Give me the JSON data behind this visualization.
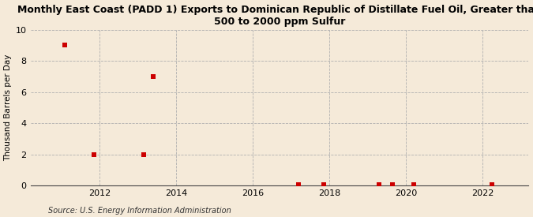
{
  "title": "Monthly East Coast (PADD 1) Exports to Dominican Republic of Distillate Fuel Oil, Greater than\n500 to 2000 ppm Sulfur",
  "ylabel": "Thousand Barrels per Day",
  "source": "Source: U.S. Energy Information Administration",
  "background_color": "#f5ead9",
  "plot_bg_color": "#f5ead9",
  "scatter_color": "#cc0000",
  "xlim": [
    2010.2,
    2023.2
  ],
  "ylim": [
    0,
    10
  ],
  "yticks": [
    0,
    2,
    4,
    6,
    8,
    10
  ],
  "xticks": [
    2012,
    2014,
    2016,
    2018,
    2020,
    2022
  ],
  "data_x": [
    2011.1,
    2011.85,
    2013.15,
    2013.4,
    2017.2,
    2017.85,
    2019.3,
    2019.65,
    2020.2,
    2022.25
  ],
  "data_y": [
    9.0,
    2.0,
    2.0,
    7.0,
    0.07,
    0.07,
    0.07,
    0.07,
    0.07,
    0.07
  ],
  "marker_size": 14,
  "title_fontsize": 9,
  "ylabel_fontsize": 7.5,
  "tick_fontsize": 8,
  "source_fontsize": 7
}
